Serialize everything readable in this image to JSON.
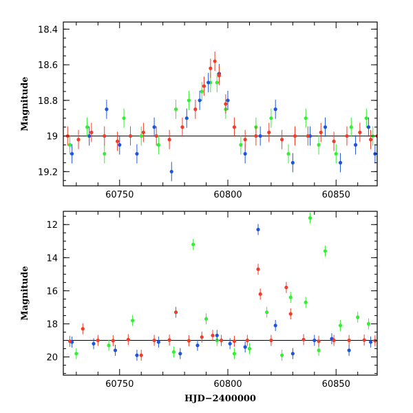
{
  "colors": {
    "g": "#33ee33",
    "c": "#1f55dd",
    "o": "#f03c28"
  },
  "chart_data": [
    {
      "type": "scatter",
      "title": "",
      "xlabel": "",
      "ylabel": "Magnitude",
      "xlim": [
        60724,
        60869
      ],
      "ylim": [
        19.28,
        18.36
      ],
      "y_inverted": true,
      "reference_line": 19.0,
      "xticks": [
        60750,
        60800,
        60850
      ],
      "ytick_labels": [
        "18.4",
        "18.6",
        "18.8",
        "19",
        "19.2"
      ],
      "series": [
        {
          "color": "#33ee33",
          "x": [
            60727,
            60735,
            60743,
            60752,
            60760,
            60768,
            60776,
            60782,
            60788,
            60792,
            60795,
            60799,
            60806,
            60813,
            60820,
            60828,
            60836,
            60842,
            60850,
            60857,
            60864,
            60867
          ],
          "y": [
            19.05,
            18.95,
            19.1,
            18.9,
            19.0,
            19.05,
            18.85,
            18.8,
            18.75,
            18.7,
            18.7,
            18.85,
            19.05,
            18.95,
            18.9,
            19.1,
            18.9,
            19.05,
            19.1,
            18.95,
            18.9,
            19.0
          ]
        },
        {
          "color": "#1f55dd",
          "x": [
            60728,
            60736,
            60744,
            60750,
            60758,
            60766,
            60774,
            60781,
            60787,
            60791,
            60796,
            60800,
            60808,
            60815,
            60822,
            60830,
            60838,
            60845,
            60852,
            60859,
            60865,
            60868
          ],
          "y": [
            19.1,
            19.0,
            18.85,
            19.05,
            19.1,
            18.95,
            19.2,
            18.9,
            18.8,
            18.7,
            18.65,
            18.8,
            19.1,
            19.0,
            18.85,
            19.15,
            19.0,
            18.95,
            19.15,
            19.05,
            18.95,
            19.1
          ]
        },
        {
          "color": "#f03c28",
          "x": [
            60726,
            60731,
            60737,
            60743,
            60749,
            60755,
            60761,
            60767,
            60773,
            60779,
            60785,
            60789,
            60792,
            60794,
            60796,
            60799,
            60803,
            60808,
            60813,
            60819,
            60825,
            60831,
            60837,
            60843,
            60849,
            60855,
            60861,
            60866,
            60869
          ],
          "y": [
            19.0,
            19.02,
            18.98,
            19.0,
            19.03,
            19.0,
            18.98,
            19.0,
            19.02,
            18.95,
            18.85,
            18.72,
            18.62,
            18.58,
            18.66,
            18.82,
            18.95,
            19.02,
            19.0,
            18.98,
            19.02,
            19.0,
            19.0,
            18.98,
            19.03,
            19.0,
            18.98,
            19.02,
            19.0
          ]
        }
      ]
    },
    {
      "type": "scatter",
      "title": "",
      "xlabel": "HJD−2400000",
      "ylabel": "Magnitude",
      "xlim": [
        60724,
        60869
      ],
      "ylim": [
        21.1,
        11.2
      ],
      "y_inverted": true,
      "reference_line": 19.0,
      "xticks": [
        60750,
        60800,
        60850
      ],
      "ytick_labels": [
        "12",
        "14",
        "16",
        "18",
        "20"
      ],
      "series": [
        {
          "color": "#33ee33",
          "x": [
            60730,
            60745,
            60756,
            60775,
            60784,
            60790,
            60795,
            60803,
            60810,
            60818,
            60825,
            60829,
            60836,
            60838,
            60842,
            60845,
            60852,
            60860,
            60865
          ],
          "y": [
            19.8,
            19.3,
            17.8,
            19.7,
            13.2,
            17.7,
            19.0,
            19.8,
            19.5,
            17.3,
            19.9,
            16.4,
            16.7,
            11.6,
            19.6,
            13.6,
            18.1,
            17.6,
            18.0
          ]
        },
        {
          "color": "#1f55dd",
          "x": [
            60728,
            60738,
            60748,
            60758,
            60768,
            60778,
            60786,
            60795,
            60801,
            60808,
            60814,
            60822,
            60830,
            60840,
            60848,
            60856,
            60866
          ],
          "y": [
            19.1,
            19.2,
            19.6,
            19.9,
            19.1,
            19.8,
            19.3,
            18.7,
            19.2,
            19.4,
            12.3,
            18.1,
            19.8,
            19.0,
            18.9,
            19.6,
            19.1
          ]
        },
        {
          "color": "#f03c28",
          "x": [
            60727,
            60733,
            60740,
            60747,
            60754,
            60760,
            60766,
            60773,
            60776,
            60782,
            60788,
            60793,
            60797,
            60803,
            60809,
            60814,
            60815,
            60820,
            60827,
            60829,
            60835,
            60842,
            60849,
            60856,
            60863,
            60868
          ],
          "y": [
            19.05,
            18.3,
            19.0,
            19.02,
            18.95,
            19.9,
            19.0,
            18.98,
            17.3,
            19.02,
            18.8,
            18.7,
            19.0,
            19.05,
            19.0,
            14.7,
            16.2,
            19.0,
            15.8,
            17.4,
            18.95,
            19.05,
            19.0,
            19.0,
            18.98,
            19.02
          ]
        }
      ]
    }
  ]
}
